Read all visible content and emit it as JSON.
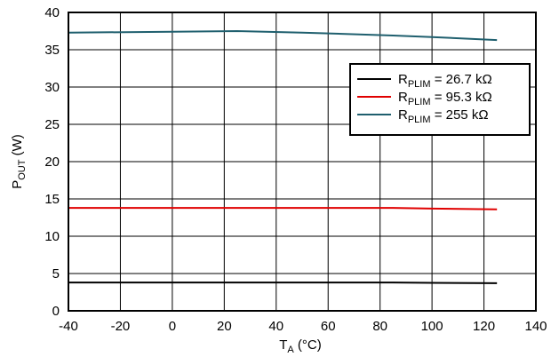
{
  "chart_data": {
    "type": "line",
    "xlabel": {
      "main": "T",
      "sub": "A",
      "rest": " (°C)"
    },
    "ylabel": {
      "main": "P",
      "sub": "OUT",
      "rest": " (W)"
    },
    "xlim": [
      -40,
      140
    ],
    "ylim": [
      0,
      40
    ],
    "xticks": [
      "-40",
      "-20",
      "0",
      "20",
      "40",
      "60",
      "80",
      "100",
      "120",
      "140"
    ],
    "yticks": [
      "0",
      "5",
      "10",
      "15",
      "20",
      "25",
      "30",
      "35",
      "40"
    ],
    "grid": true,
    "legend_position": "top-right",
    "series": [
      {
        "name": {
          "main": "R",
          "sub": "PLIM",
          "rest": " = 26.7 kΩ"
        },
        "color": "#000000",
        "x": [
          -40,
          0,
          25,
          50,
          85,
          100,
          125
        ],
        "y": [
          3.8,
          3.8,
          3.8,
          3.8,
          3.8,
          3.75,
          3.7
        ]
      },
      {
        "name": {
          "main": "R",
          "sub": "PLIM",
          "rest": " = 95.3 kΩ"
        },
        "color": "#e00000",
        "x": [
          -40,
          0,
          25,
          50,
          85,
          100,
          125
        ],
        "y": [
          13.8,
          13.8,
          13.8,
          13.8,
          13.8,
          13.7,
          13.6
        ]
      },
      {
        "name": {
          "main": "R",
          "sub": "PLIM",
          "rest": " = 255 kΩ"
        },
        "color": "#1f5f6e",
        "x": [
          -40,
          0,
          25,
          50,
          85,
          100,
          125
        ],
        "y": [
          37.3,
          37.4,
          37.5,
          37.3,
          36.9,
          36.7,
          36.3
        ]
      }
    ]
  }
}
